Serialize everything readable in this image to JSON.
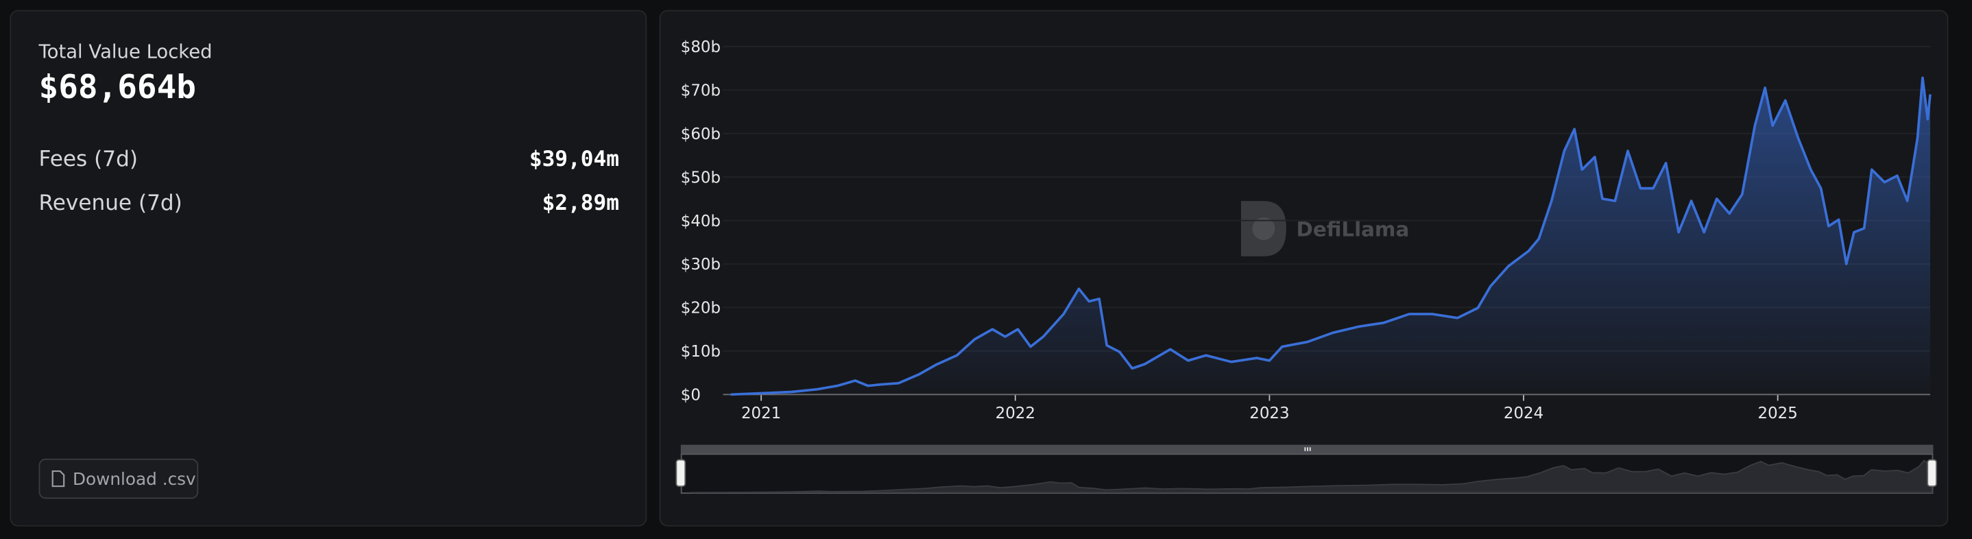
{
  "summary": {
    "label": "Total Value Locked",
    "value": "$68,664b",
    "rows": [
      {
        "label": "Fees (7d)",
        "value": "$39,04m"
      },
      {
        "label": "Revenue (7d)",
        "value": "$2,89m"
      }
    ]
  },
  "download_button": "Download .csv",
  "watermark": "DefiLlama",
  "chart_data": {
    "type": "area",
    "color": "#3a6fd8",
    "x": [
      2020.88,
      2021.0,
      2021.12,
      2021.22,
      2021.3,
      2021.37,
      2021.42,
      2021.47,
      2021.54,
      2021.62,
      2021.69,
      2021.77,
      2021.84,
      2021.91,
      2021.96,
      2022.01,
      2022.06,
      2022.11,
      2022.19,
      2022.25,
      2022.29,
      2022.33,
      2022.36,
      2022.41,
      2022.46,
      2022.51,
      2022.61,
      2022.68,
      2022.75,
      2022.85,
      2022.95,
      2023.0,
      2023.05,
      2023.15,
      2023.25,
      2023.35,
      2023.45,
      2023.55,
      2023.64,
      2023.74,
      2023.82,
      2023.87,
      2023.94,
      2024.02,
      2024.06,
      2024.11,
      2024.16,
      2024.2,
      2024.23,
      2024.28,
      2024.31,
      2024.36,
      2024.41,
      2024.46,
      2024.51,
      2024.56,
      2024.61,
      2024.66,
      2024.71,
      2024.76,
      2024.81,
      2024.86,
      2024.91,
      2024.95,
      2024.98,
      2025.03,
      2025.08,
      2025.13,
      2025.17,
      2025.2,
      2025.24,
      2025.27,
      2025.3,
      2025.34,
      2025.37,
      2025.42,
      2025.47,
      2025.51,
      2025.55,
      2025.57,
      2025.59,
      2025.6
    ],
    "values": [
      0,
      0.3,
      0.6,
      1.2,
      2,
      3.2,
      2,
      2.3,
      2.6,
      4.6,
      6.9,
      9,
      12.7,
      15,
      13.3,
      15,
      11,
      13.3,
      18.5,
      24.3,
      21.4,
      22,
      11.3,
      9.8,
      6,
      7,
      10.4,
      7.8,
      9,
      7.5,
      8.4,
      7.8,
      11,
      12.1,
      14.2,
      15.6,
      16.5,
      18.5,
      18.5,
      17.6,
      19.9,
      24.9,
      29.5,
      33,
      35.8,
      44.5,
      56,
      61,
      51.7,
      54.6,
      45,
      44.5,
      56,
      47.4,
      47.4,
      53.2,
      37.3,
      44.5,
      37.3,
      45,
      41.6,
      46,
      61.8,
      70.5,
      61.8,
      67.6,
      59,
      51.7,
      47.4,
      38.7,
      40.2,
      30,
      37.3,
      38.2,
      51.7,
      48.8,
      50.3,
      44.5,
      59,
      72.8,
      63.3,
      69
    ],
    "xlim": [
      2020.85,
      2025.6
    ],
    "xticks": [
      2021,
      2022,
      2023,
      2024,
      2025
    ],
    "ylim": [
      0,
      80
    ],
    "yticks": [
      {
        "value": 0,
        "label": "$0"
      },
      {
        "value": 10,
        "label": "$10b"
      },
      {
        "value": 20,
        "label": "$20b"
      },
      {
        "value": 30,
        "label": "$30b"
      },
      {
        "value": 40,
        "label": "$40b"
      },
      {
        "value": 50,
        "label": "$50b"
      },
      {
        "value": 60,
        "label": "$60b"
      },
      {
        "value": 70,
        "label": "$70b"
      },
      {
        "value": 80,
        "label": "$80b"
      }
    ],
    "grid": true
  }
}
